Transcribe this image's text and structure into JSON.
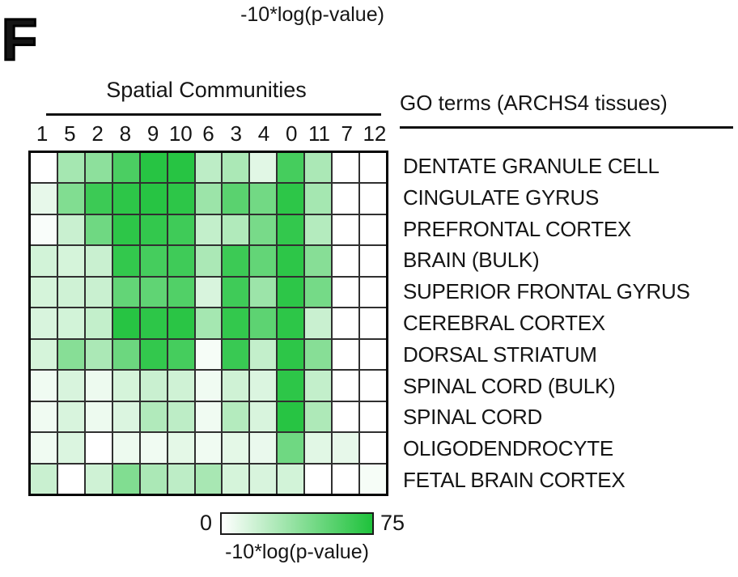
{
  "panel": {
    "label": "F"
  },
  "top_colorbar_label": "-10*log(p-value)",
  "chart_data": {
    "type": "heatmap",
    "columns_title": "Spatial Communities",
    "rows_title": "GO terms (ARCHS4 tissues)",
    "columns": [
      "1",
      "5",
      "2",
      "8",
      "9",
      "10",
      "6",
      "3",
      "4",
      "0",
      "11",
      "7",
      "12"
    ],
    "rows": [
      "DENTATE GRANULE CELL",
      "CINGULATE GYRUS",
      "PREFRONTAL CORTEX",
      "BRAIN (BULK)",
      "SUPERIOR FRONTAL GYRUS",
      "CEREBRAL CORTEX",
      "DORSAL STRIATUM",
      "SPINAL CORD (BULK)",
      "SPINAL CORD",
      "OLIGODENDROCYTE",
      "FETAL BRAIN CORTEX"
    ],
    "values": [
      [
        0,
        30,
        38,
        60,
        72,
        72,
        22,
        28,
        10,
        62,
        28,
        0,
        0
      ],
      [
        8,
        42,
        65,
        70,
        72,
        70,
        33,
        55,
        47,
        70,
        30,
        0,
        0
      ],
      [
        2,
        18,
        48,
        70,
        68,
        64,
        20,
        26,
        45,
        68,
        25,
        0,
        0
      ],
      [
        15,
        14,
        18,
        68,
        62,
        64,
        28,
        65,
        52,
        70,
        40,
        0,
        0
      ],
      [
        14,
        16,
        18,
        52,
        53,
        58,
        13,
        64,
        33,
        70,
        46,
        0,
        0
      ],
      [
        13,
        15,
        20,
        72,
        70,
        71,
        30,
        68,
        54,
        70,
        18,
        0,
        0
      ],
      [
        14,
        40,
        28,
        49,
        68,
        62,
        3,
        66,
        20,
        70,
        40,
        0,
        0
      ],
      [
        5,
        13,
        6,
        14,
        18,
        16,
        5,
        16,
        12,
        70,
        20,
        0,
        0
      ],
      [
        5,
        13,
        6,
        12,
        26,
        22,
        5,
        25,
        13,
        72,
        27,
        0,
        0
      ],
      [
        5,
        12,
        0,
        6,
        5,
        9,
        5,
        9,
        7,
        48,
        10,
        8,
        0
      ],
      [
        18,
        0,
        16,
        42,
        28,
        22,
        29,
        14,
        13,
        15,
        0,
        0,
        3
      ]
    ],
    "colorbar": {
      "min": 0,
      "max": 75,
      "min_label": "0",
      "max_label": "75",
      "label": "-10*log(p-value)",
      "min_color": "#FFFFFF",
      "max_color": "#1EC23B"
    }
  }
}
